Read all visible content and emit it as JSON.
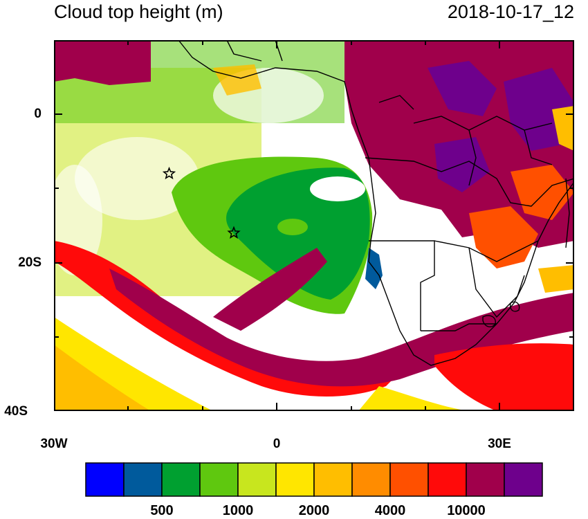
{
  "header": {
    "title": "Cloud top height (m)",
    "date": "2018-10-17_12"
  },
  "axes": {
    "y_ticks": [
      {
        "label": "0",
        "lat": 0
      },
      {
        "label": "20S",
        "lat": -20
      },
      {
        "label": "40S",
        "lat": -40
      }
    ],
    "x_ticks": [
      {
        "label": "30W",
        "lon": -30
      },
      {
        "label": "0",
        "lon": 0
      },
      {
        "label": "30E",
        "lon": 30
      }
    ],
    "lon_range": [
      -30,
      40
    ],
    "lat_range": [
      -40,
      10
    ]
  },
  "colorbar": {
    "colors": [
      "#0000ff",
      "#005a9c",
      "#00a030",
      "#5fc80f",
      "#c8e61e",
      "#ffe600",
      "#ffbe00",
      "#ff8c00",
      "#ff5000",
      "#ff0a0a",
      "#a0004b",
      "#6e008c"
    ],
    "labels": [
      {
        "text": "500",
        "boundary": 2
      },
      {
        "text": "1000",
        "boundary": 4
      },
      {
        "text": "2000",
        "boundary": 6
      },
      {
        "text": "4000",
        "boundary": 8
      },
      {
        "text": "10000",
        "boundary": 10
      }
    ]
  },
  "markers": [
    {
      "name": "star-marker-1",
      "lon": -14.5,
      "lat": -8
    },
    {
      "name": "star-marker-2",
      "lon": -5.8,
      "lat": -16
    }
  ]
}
